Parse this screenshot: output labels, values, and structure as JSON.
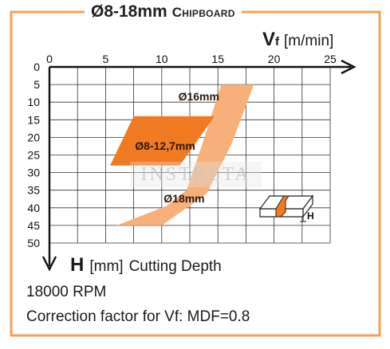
{
  "title": {
    "main": "Ø8-18mm",
    "sub": "Chipboard"
  },
  "x_axis": {
    "symbol": "V",
    "subscript": "f",
    "unit": "[m/min]"
  },
  "y_axis": {
    "symbol": "H",
    "unit": "[mm]",
    "description": "Cutting Depth"
  },
  "notes": {
    "rpm": "18000 RPM",
    "correction": "Correction factor for Vf: MDF=0.8"
  },
  "watermark": "INSTRETA",
  "inset": {
    "label": "H"
  },
  "colors": {
    "frame": "#f5a05a",
    "light_band": "#f7b07a",
    "dark_band": "#f07a22",
    "grid": "#333333"
  },
  "chart_data": {
    "type": "area",
    "title": "Ø8-18mm Chipboard",
    "xlabel": "Vf [m/min]",
    "ylabel": "H [mm] Cutting Depth",
    "xlim": [
      0,
      25
    ],
    "ylim": [
      0,
      50
    ],
    "y_inverted": true,
    "xticks": [
      0,
      5,
      10,
      15,
      20,
      25
    ],
    "yticks": [
      0,
      5,
      10,
      15,
      20,
      25,
      30,
      35,
      40,
      45,
      50
    ],
    "grid": true,
    "series": [
      {
        "name": "Ø16mm",
        "color": "#f7b07a",
        "polygon": [
          [
            15.3,
            5
          ],
          [
            18.2,
            5
          ],
          [
            16.2,
            22
          ],
          [
            14.0,
            36
          ],
          [
            10.0,
            45
          ],
          [
            6.0,
            45
          ],
          [
            10.4,
            39.5
          ],
          [
            12.2,
            35
          ],
          [
            13.6,
            22
          ]
        ],
        "label_at": [
          13.3,
          9.5
        ]
      },
      {
        "name": "Ø18mm",
        "color": "#f7b07a",
        "polygon": [],
        "label_at": [
          12.0,
          38.5
        ]
      },
      {
        "name": "Ø8-12,7mm",
        "color": "#f07a22",
        "polygon": [
          [
            7.5,
            14
          ],
          [
            14.7,
            14
          ],
          [
            11.6,
            28
          ],
          [
            5.4,
            28
          ]
        ],
        "label_at": [
          10.3,
          23.5
        ]
      }
    ]
  }
}
